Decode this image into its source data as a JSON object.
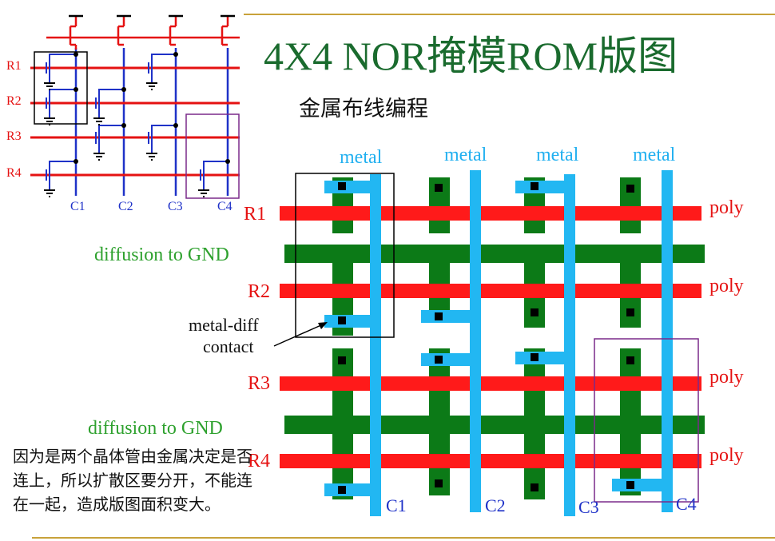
{
  "title": "4X4 NOR掩模ROM版图",
  "subtitle": "金属布线编程",
  "layout": {
    "metal_labels": [
      "metal",
      "metal",
      "metal",
      "metal"
    ],
    "poly_labels": [
      "poly",
      "poly",
      "poly",
      "poly"
    ],
    "row_labels": [
      "R1",
      "R2",
      "R3",
      "R4"
    ],
    "column_labels": [
      "C1",
      "C2",
      "C3",
      "C4"
    ],
    "diffusion_labels": [
      "diffusion to GND",
      "diffusion to GND"
    ],
    "contact_label_line1": "metal-diff",
    "contact_label_line2": "contact"
  },
  "schematic": {
    "row_labels": [
      "R1",
      "R2",
      "R3",
      "R4"
    ],
    "column_labels": [
      "C1",
      "C2",
      "C3",
      "C4"
    ]
  },
  "note": "因为是两个晶体管由金属决定是否连上，所以扩散区要分开，不能连在一起，造成版图面积变大。",
  "colors": {
    "title": "#1a6b2e",
    "metal": "#22b7f2",
    "poly": "#ff1a1a",
    "diffusion": "#0c7a17",
    "contact": "#000000",
    "schematic_wire_blue": "#1f32c8",
    "schematic_wire_red": "#e51212",
    "highlight_box": "#7a2a8a",
    "rule": "#c8a23a"
  }
}
